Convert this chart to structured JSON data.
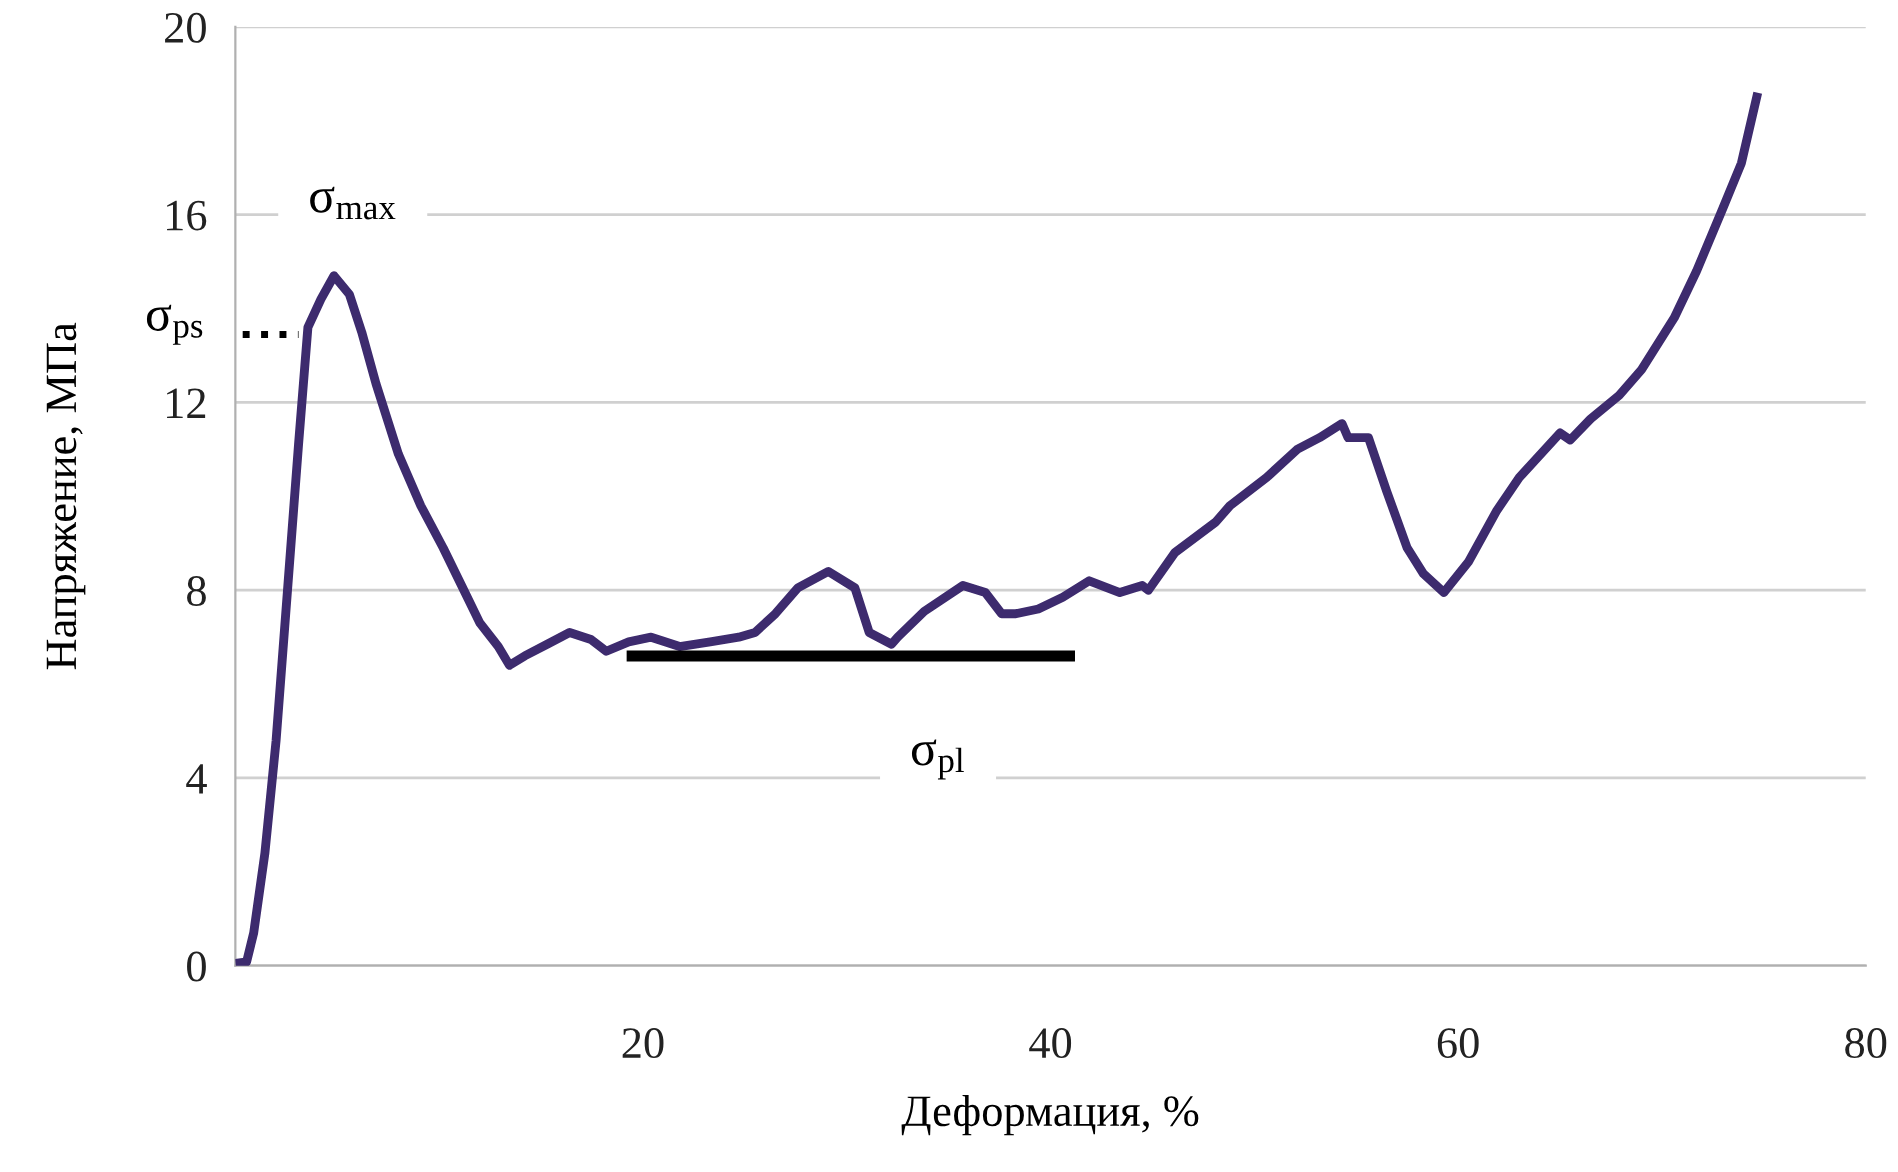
{
  "chart_data": {
    "type": "line",
    "xlabel": "Деформация, %",
    "ylabel": "Напряжение, МПа",
    "xlim": [
      0,
      80
    ],
    "xticks": [
      20,
      40,
      60,
      80
    ],
    "ylim": [
      0,
      20
    ],
    "yticks": [
      0,
      4,
      8,
      12,
      16,
      20
    ],
    "grid": "y",
    "marker": "none",
    "legend": false,
    "series": [
      {
        "color": "#3d2b6e",
        "line_style": "solid",
        "x": [
          0,
          0.55,
          0.9,
          1.45,
          2.0,
          2.55,
          3.1,
          3.56,
          4.2,
          4.84,
          5.6,
          6.2,
          6.9,
          8.0,
          9.1,
          10.2,
          11.1,
          12.0,
          12.9,
          13.45,
          14.2,
          15.3,
          16.4,
          17.45,
          18.2,
          19.3,
          20.4,
          21.8,
          23.3,
          24.7,
          25.5,
          26.5,
          27.6,
          29.1,
          30.4,
          31.1,
          32.2,
          32.5,
          33.8,
          35.7,
          36.8,
          37.6,
          38.3,
          39.4,
          40.6,
          41.9,
          43.4,
          44.5,
          44.8,
          46.1,
          48.1,
          48.8,
          50.6,
          52.1,
          53.2,
          54.3,
          54.6,
          55.6,
          56.5,
          57.5,
          58.3,
          59.3,
          60.5,
          61.9,
          63.0,
          65.0,
          65.5,
          66.5,
          67.9,
          69.0,
          70.6,
          71.7,
          73.0,
          73.9,
          74.7
        ],
        "values": [
          0.05,
          0.08,
          0.7,
          2.4,
          4.8,
          7.95,
          11.1,
          13.6,
          14.2,
          14.7,
          14.3,
          13.5,
          12.4,
          10.9,
          9.8,
          8.9,
          8.1,
          7.3,
          6.8,
          6.4,
          6.6,
          6.85,
          7.1,
          6.95,
          6.7,
          6.9,
          7.0,
          6.8,
          6.9,
          7.0,
          7.1,
          7.5,
          8.05,
          8.4,
          8.05,
          7.1,
          6.85,
          7.0,
          7.55,
          8.1,
          7.95,
          7.5,
          7.5,
          7.6,
          7.85,
          8.2,
          7.95,
          8.1,
          8.0,
          8.8,
          9.45,
          9.8,
          10.4,
          11.0,
          11.25,
          11.55,
          11.25,
          11.25,
          10.1,
          8.9,
          8.35,
          7.95,
          8.6,
          9.7,
          10.4,
          11.35,
          11.2,
          11.65,
          12.15,
          12.7,
          13.8,
          14.8,
          16.15,
          17.1,
          18.6
        ]
      },
      {
        "color": "#000000",
        "line_style": "solid",
        "x": [
          19.2,
          41.2
        ],
        "values": [
          6.6,
          6.6
        ]
      },
      {
        "color": "#000000",
        "line_style": "dotted",
        "x": [
          0.36,
          3.1
        ],
        "values": [
          13.45,
          13.45
        ]
      }
    ],
    "annotations": [
      "σ$_{max}$",
      "σ$_{ps}$",
      "σ$_{pl}$"
    ]
  }
}
